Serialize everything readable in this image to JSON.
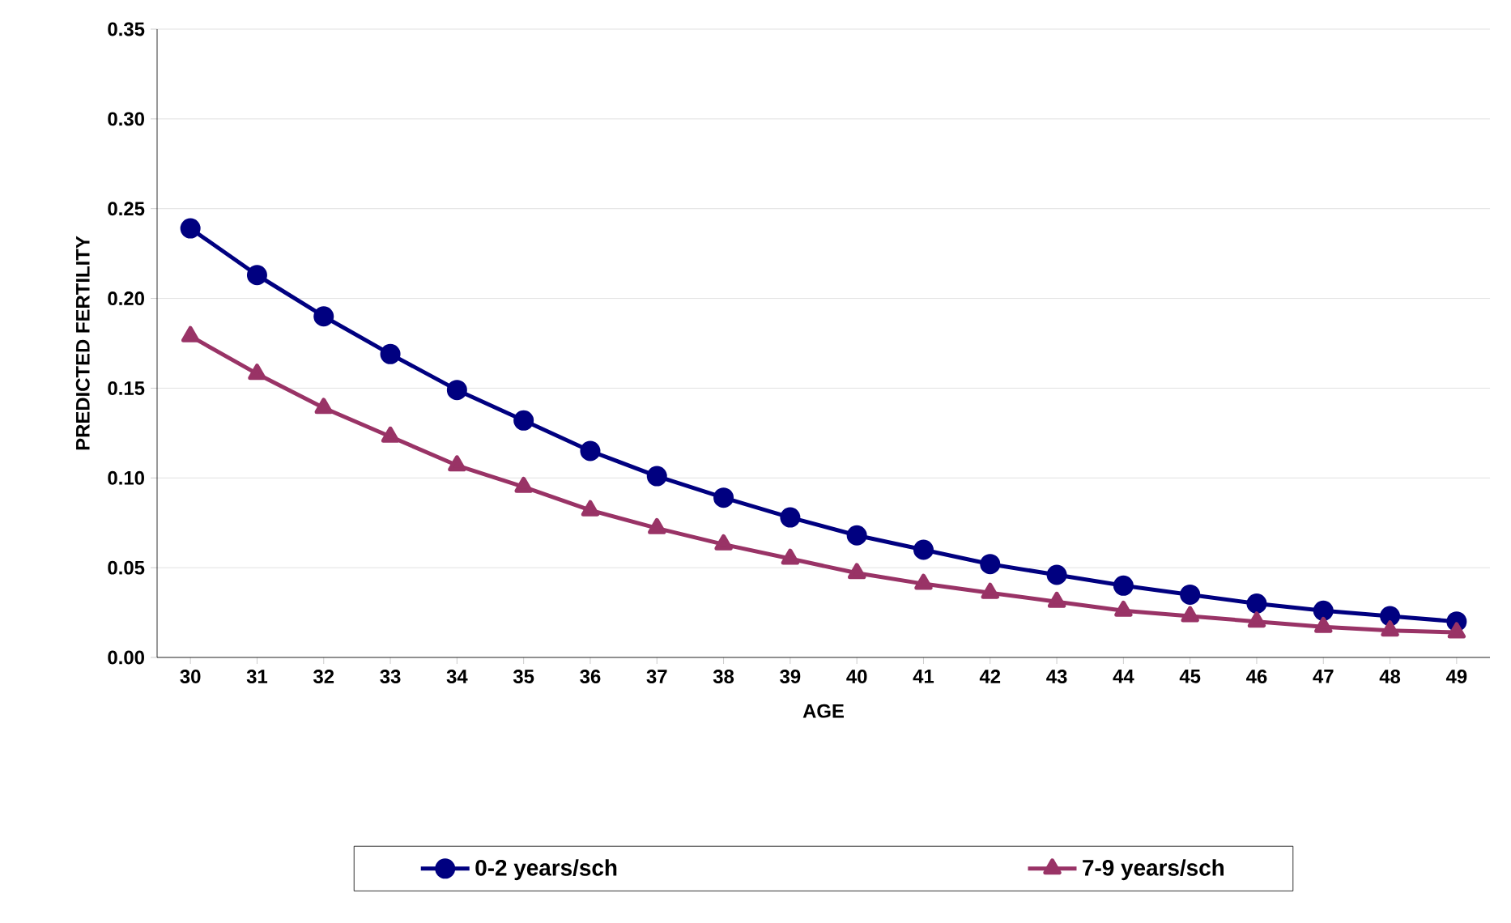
{
  "chart_data": {
    "type": "line",
    "xlabel": "AGE",
    "ylabel": "PREDICTED FERTILITY",
    "categories": [
      "30",
      "31",
      "32",
      "33",
      "34",
      "35",
      "36",
      "37",
      "38",
      "39",
      "40",
      "41",
      "42",
      "43",
      "44",
      "45",
      "46",
      "47",
      "48",
      "49"
    ],
    "series": [
      {
        "name": "0-2 years/sch",
        "color": "#000080",
        "marker": "circle",
        "values": [
          0.239,
          0.213,
          0.19,
          0.169,
          0.149,
          0.132,
          0.115,
          0.101,
          0.089,
          0.078,
          0.068,
          0.06,
          0.052,
          0.046,
          0.04,
          0.035,
          0.03,
          0.026,
          0.023,
          0.02
        ]
      },
      {
        "name": "7-9 years/sch",
        "color": "#993366",
        "marker": "triangle",
        "values": [
          0.179,
          0.158,
          0.139,
          0.123,
          0.107,
          0.095,
          0.082,
          0.072,
          0.063,
          0.055,
          0.047,
          0.041,
          0.036,
          0.031,
          0.026,
          0.023,
          0.02,
          0.017,
          0.015,
          0.014
        ]
      }
    ],
    "ylim": [
      0,
      0.35
    ],
    "yticks": [
      {
        "value": 0,
        "label": "0.00"
      },
      {
        "value": 0.05,
        "label": "0.05"
      },
      {
        "value": 0.1,
        "label": "0.10"
      },
      {
        "value": 0.15,
        "label": "0.15"
      },
      {
        "value": 0.2,
        "label": "0.20"
      },
      {
        "value": 0.25,
        "label": "0.25"
      },
      {
        "value": 0.3,
        "label": "0.30"
      },
      {
        "value": 0.35,
        "label": "0.35"
      }
    ],
    "grid": "y",
    "legend": "bottom",
    "line_style": "solid"
  }
}
